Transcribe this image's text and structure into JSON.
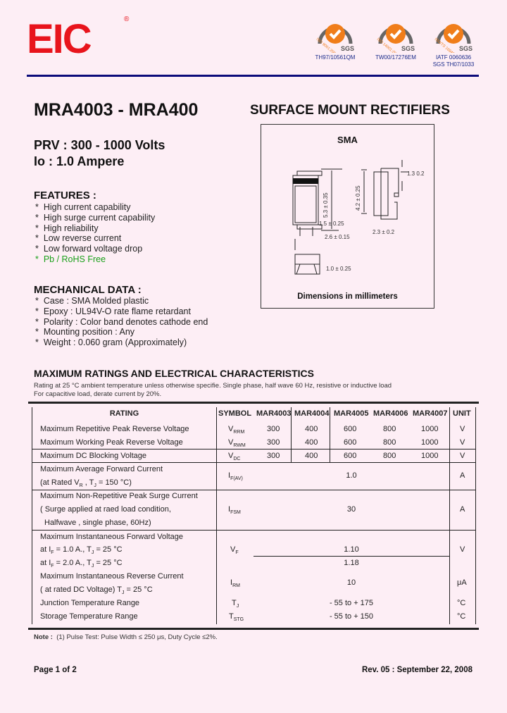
{
  "header": {
    "logo": "EIC",
    "registered": "®",
    "certs": [
      {
        "label": "ISO 9001:2000",
        "brand": "SGS",
        "code": "TH97/10561QM"
      },
      {
        "label": "ISO 14001:2004",
        "brand": "SGS",
        "code": "TW00/17276EM"
      },
      {
        "label": "ISO/TS 16949",
        "brand": "SGS",
        "code": "IATF 0060636",
        "code2": "SGS TH07/1033"
      }
    ],
    "colors": {
      "logo": "#e8141c",
      "rule": "#0b0b7a",
      "cert_orange": "#f07d1a"
    }
  },
  "title": "MRA4003 - MRA400",
  "subtitle": "SURFACE MOUNT RECTIFIERS",
  "prv": "PRV : 300 - 1000 Volts",
  "io": "Io : 1.0 Ampere",
  "features": {
    "heading": "FEATURES :",
    "items": [
      "High current capability",
      "High surge current capability",
      "High reliability",
      "Low reverse current",
      "Low forward voltage drop",
      "Pb / RoHS Free"
    ],
    "highlight_color": "#1aa01a"
  },
  "mechanical": {
    "heading": "MECHANICAL  DATA :",
    "items": [
      "Case :  SMA Molded plastic",
      "Epoxy : UL94V-O rate flame retardant",
      "Polarity : Color band denotes cathode end",
      "Mounting  position : Any",
      "Weight : 0.060 gram (Approximately)"
    ]
  },
  "package": {
    "name": "SMA",
    "dims": {
      "d1": "5.3 ± 0.35",
      "d2": "4.2 ± 0.25",
      "d3": "1.3   0.2",
      "d4": "1.5 ± 0.25",
      "d5": "2.6 ± 0.15",
      "d6": "2.3 ± 0.2",
      "d7": "1.0 ± 0.25"
    },
    "caption": "Dimensions in millimeters"
  },
  "ratings": {
    "heading": "MAXIMUM RATINGS AND ELECTRICAL CHARACTERISTICS",
    "note1": "Rating at 25 °C ambient temperature unless otherwise specifie. Single phase, half wave 60 Hz, resistive or inductive load",
    "note2": "For capacitive load, derate current by 20%.",
    "columns": [
      "RATING",
      "SYMBOL",
      "MAR4003",
      "MAR4004",
      "MAR4005",
      "MAR4006",
      "MAR4007",
      "UNIT"
    ],
    "rows": [
      {
        "r": "Maximum Repetitive Peak Reverse Voltage",
        "s": "V",
        "ss": "RRM",
        "v": [
          "300",
          "400",
          "600",
          "800",
          "1000"
        ],
        "u": "V"
      },
      {
        "r": "Maximum Working Peak Reverse Voltage",
        "s": "V",
        "ss": "RWM",
        "v": [
          "300",
          "400",
          "600",
          "800",
          "1000"
        ],
        "u": "V"
      },
      {
        "r": "Maximum DC Blocking Voltage",
        "s": "V",
        "ss": "DC",
        "v": [
          "300",
          "400",
          "600",
          "800",
          "1000"
        ],
        "u": "V"
      },
      {
        "r": "Maximum Average Forward Current",
        "r2": "(at Rated V",
        "r2s": "R",
        "r2b": " , T",
        "r2c": "J",
        "r2d": " = 150 °C)",
        "s": "I",
        "ss": "F(AV)",
        "val": "1.0",
        "u": "A"
      },
      {
        "r": "Maximum Non-Repetitive Peak Surge Current",
        "r2": "( Surge applied at raed load condition,",
        "r3": "Halfwave , single phase, 60Hz)",
        "s": "I",
        "ss": "FSM",
        "val": "30",
        "u": "A"
      },
      {
        "r": "Maximum Instantaneous Forward Voltage",
        "r2": "at I",
        "r2s": "F",
        "r2b": " = 1.0 A., T",
        "r2c": "J",
        "r2d": " = 25 °C",
        "r3": "at I",
        "r3s": "F",
        "r3b": " = 2.0 A., T",
        "r3c": "J",
        "r3d": " = 25 °C",
        "s": "V",
        "ss": "F",
        "val": "1.10",
        "val2": "1.18",
        "u": "V"
      },
      {
        "r": "Maximum Instantaneous Reverse Current",
        "r2": "( at rated DC Voltage) T",
        "r2c": "J",
        "r2d": " = 25 °C",
        "s": "I",
        "ss": "RM",
        "val": "10",
        "u": "μA"
      },
      {
        "r": "Junction Temperature Range",
        "s": "T",
        "ss": "J",
        "val": "- 55 to + 175",
        "u": "°C"
      },
      {
        "r": "Storage Temperature Range",
        "s": "T",
        "ss": "STG",
        "val": "- 55 to + 150",
        "u": "°C"
      }
    ],
    "footnote_label": "Note :",
    "footnote": "(1) Pulse Test: Pulse Width ≤ 250 μs, Duty Cycle ≤2%."
  },
  "footer": {
    "page": "Page 1 of 2",
    "rev": "Rev. 05 : September 22, 2008"
  }
}
